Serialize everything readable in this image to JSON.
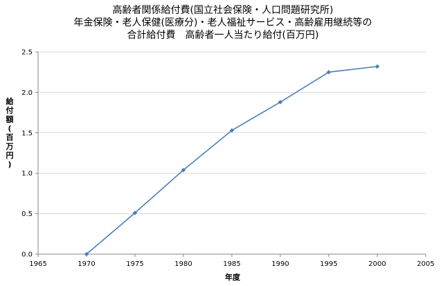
{
  "chart_data": {
    "type": "line",
    "title": [
      "高齢者関係給付費(国立社会保険・人口問題研究所)",
      "年金保険・老人保健(医療分)・老人福祉サービス・高齢雇用継続等の",
      "合計給付費　高齢者一人当たり給付(百万円)"
    ],
    "xlabel": "年度",
    "ylabel": "給付額(百万円)",
    "xlim": [
      1965,
      2005
    ],
    "ylim": [
      0.0,
      2.5
    ],
    "xticks": [
      1965,
      1970,
      1975,
      1980,
      1985,
      1990,
      1995,
      2000,
      2005
    ],
    "yticks": [
      0.0,
      0.5,
      1.0,
      1.5,
      2.0,
      2.5
    ],
    "xtick_labels": [
      "1965",
      "1970",
      "1975",
      "1980",
      "1985",
      "1990",
      "1995",
      "2000",
      "2005"
    ],
    "ytick_labels": [
      "0.0",
      "0.5",
      "1.0",
      "1.5",
      "2.0",
      "2.5"
    ],
    "grid": "horizontal",
    "legend": "none",
    "series": [
      {
        "x": [
          1970,
          1975,
          1980,
          1985,
          1990,
          1995,
          2000
        ],
        "y": [
          0.0,
          0.51,
          1.04,
          1.53,
          1.88,
          2.25,
          2.32
        ],
        "color": "#4a7ebb",
        "marker": "diamond"
      }
    ]
  }
}
